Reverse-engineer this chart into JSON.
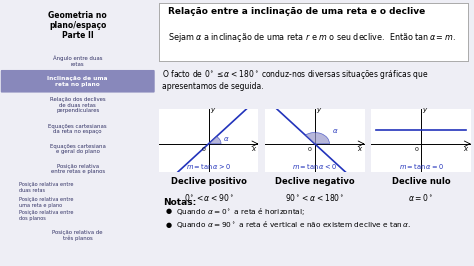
{
  "bg_left": "#c8c8d8",
  "bg_main": "#eeeef5",
  "left_title": "Geometria no\nplano/espaço\nParte II",
  "left_items": [
    "Ângulo entre duas\nretas",
    "Inclinação de uma\nreta no plano",
    "Relação dos declives\nde duas retas\nperpendiculares",
    "Equações cartesianas\nda reta no espaço",
    "Equações cartesiana\ne geral do plano",
    "Posição relativa\nentre retas e planos",
    "Posição relativa entre\nduas retas",
    "Posição relativa entre\numa reta e plano",
    "Posição relativa entre\ndos planos",
    "Posição relativa de\ntrês planos"
  ],
  "active_item": 1,
  "main_title": "Relação entre a inclinação de uma reta e o declive",
  "theorem_text": "Sejam $\\alpha$ a inclinação de uma reta $r$ e $m$ o seu declive.  Então $\\tan\\alpha = m$.",
  "fact_text": "O facto de $0^\\circ \\leq \\alpha < 180^\\circ$ conduz-nos diversas situações gráficas que\napresentamos de seguida.",
  "line_color": "#2233bb",
  "angle_fill": "#9999cc",
  "plots": [
    {
      "label_bottom": "$m = \\tan\\alpha > 0$",
      "title1": "Declive positivo",
      "title2": "$0^\\circ < \\alpha < 90^\\circ$",
      "slope": 1.2,
      "angle_side": "left"
    },
    {
      "label_bottom": "$m = \\tan\\alpha < 0$",
      "title1": "Declive negativo",
      "title2": "$90^\\circ < \\alpha < 180^\\circ$",
      "slope": -1.2,
      "angle_side": "right"
    },
    {
      "label_bottom": "$m = \\tan\\alpha = 0$",
      "title1": "Declive nulo",
      "title2": "$\\alpha = 0^\\circ$",
      "slope": 0,
      "angle_side": "none"
    }
  ],
  "notes_title": "Notas:",
  "notes": [
    "Quando $\\alpha = 0^\\circ$ a reta é horizontal;",
    "Quando $\\alpha = 90^\\circ$ a reta é vertical e não existem declive e $\\tan\\alpha$."
  ]
}
